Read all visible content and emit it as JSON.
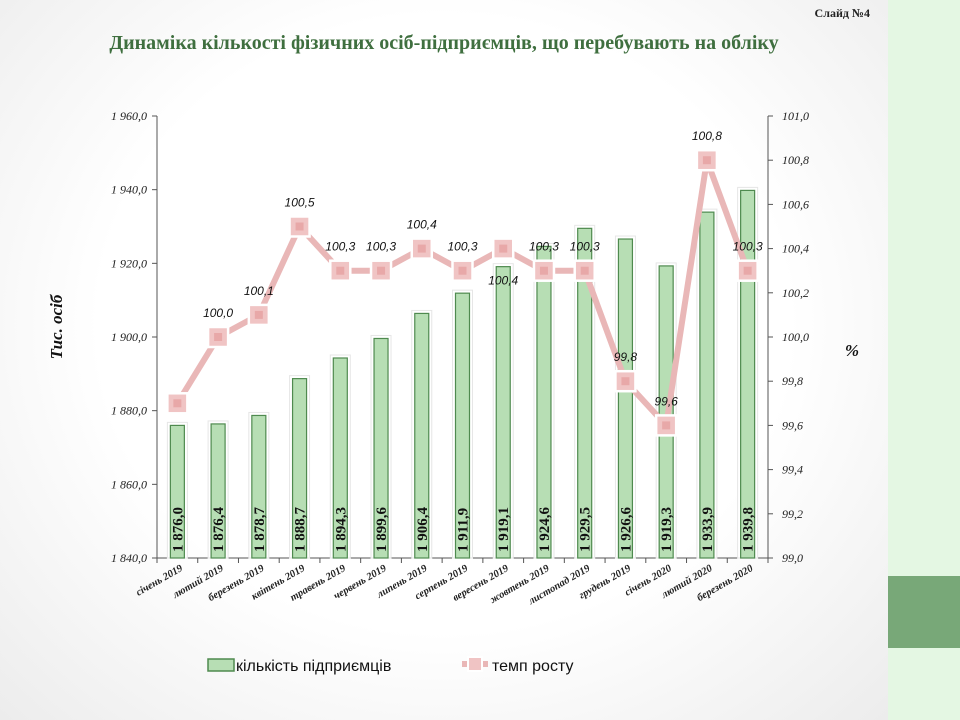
{
  "slide_label": "Слайд №4",
  "title": "Динаміка кількості фізичних осіб-підприємців, що перебувають на обліку",
  "colors": {
    "bar_fill": "#b7deb4",
    "bar_stroke": "#4f8a4f",
    "line": "#e9b7b7",
    "marker": "#f0c4c4",
    "marker_border": "#ffffff",
    "title": "#3f6f3f"
  },
  "chart_data": {
    "type": "bar+line",
    "categories": [
      "січень 2019",
      "лютий 2019",
      "березень 2019",
      "квітень 2019",
      "травень 2019",
      "червень 2019",
      "липень 2019",
      "серпень 2019",
      "вересень 2019",
      "жовтень 2019",
      "листопад 2019",
      "грудень 2019",
      "січень 2020",
      "лютий 2020",
      "березень 2020"
    ],
    "series": [
      {
        "name": "кількість підприємців",
        "type": "bar",
        "axis": "left",
        "values": [
          1876.0,
          1876.4,
          1878.7,
          1888.7,
          1894.3,
          1899.6,
          1906.4,
          1911.9,
          1919.1,
          1924.6,
          1929.5,
          1926.6,
          1919.3,
          1933.9,
          1939.8
        ],
        "labels": [
          "1 876,0",
          "1 876,4",
          "1 878,7",
          "1 888,7",
          "1 894,3",
          "1 899,6",
          "1 906,4",
          "1 911,9",
          "1 919,1",
          "1 924,6",
          "1 929,5",
          "1 926,6",
          "1 919,3",
          "1 933,9",
          "1 939,8"
        ]
      },
      {
        "name": "темп росту",
        "type": "line",
        "axis": "right",
        "values": [
          99.7,
          100.0,
          100.1,
          100.5,
          100.3,
          100.3,
          100.4,
          100.3,
          100.4,
          100.3,
          100.3,
          99.8,
          99.6,
          100.8,
          100.3
        ],
        "labels": [
          "",
          "100,0",
          "100,1",
          "100,5",
          "100,3",
          "100,3",
          "100,4",
          "100,3",
          "100,4",
          "100,3",
          "100,3",
          "99,8",
          "99,6",
          "100,8",
          "100,3"
        ]
      }
    ],
    "ylabel": "Тис. осіб",
    "y2label": "%",
    "ylim": [
      1840,
      1960
    ],
    "y2lim": [
      99.0,
      101.0
    ],
    "yticks": [
      "1 840,0",
      "1 860,0",
      "1 880,0",
      "1 900,0",
      "1 920,0",
      "1 940,0",
      "1 960,0"
    ],
    "y2ticks": [
      "99,0",
      "99,2",
      "99,4",
      "99,6",
      "99,8",
      "100,0",
      "100,2",
      "100,4",
      "100,6",
      "100,8",
      "101,0"
    ],
    "grid": false,
    "legend": "bottom"
  }
}
